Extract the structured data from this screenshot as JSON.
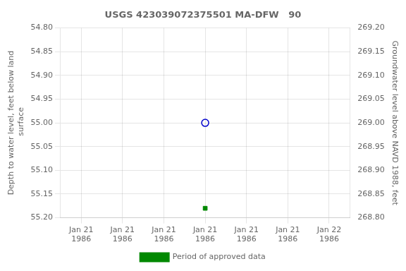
{
  "chart_data": {
    "type": "scatter",
    "title": "USGS 423039072375501 MA-DFW   90",
    "categories": [
      "Jan 21\n1986",
      "Jan 21\n1986",
      "Jan 21\n1986",
      "Jan 21\n1986",
      "Jan 21\n1986",
      "Jan 21\n1986",
      "Jan 22\n1986"
    ],
    "series": [
      {
        "color": "#0000cc",
        "marker": "circle_open",
        "values": [
          null,
          null,
          null,
          55.0,
          null,
          null,
          null
        ]
      },
      {
        "name": "Period of approved data",
        "color": "#008800",
        "marker": "square",
        "values": [
          null,
          null,
          null,
          55.18,
          null,
          null,
          null
        ]
      }
    ],
    "y_label": "Depth to water level, feet below land\n surface",
    "y2_label": "Groundwater level above NAVD 1988, feet",
    "ylim": [
      55.2,
      54.8
    ],
    "yticks": [
      {
        "value": 54.8,
        "label": "54.80"
      },
      54.85,
      {
        "value": 54.9,
        "label": "54.90"
      },
      54.95,
      {
        "value": 55.0,
        "label": "55.00"
      },
      55.05,
      {
        "value": 55.1,
        "label": "55.10"
      },
      55.15,
      {
        "value": 55.2,
        "label": "55.20"
      }
    ],
    "y2lim": [
      268.8,
      269.2
    ],
    "y2ticks": [
      {
        "value": 268.8,
        "label": "268.80"
      },
      268.85,
      {
        "value": 268.9,
        "label": "268.90"
      },
      268.95,
      {
        "value": 269.0,
        "label": "269.00"
      },
      269.05,
      {
        "value": 269.1,
        "label": "269.10"
      },
      269.15,
      {
        "value": 269.2,
        "label": "269.20"
      }
    ],
    "grid": true,
    "legend": "bottom"
  }
}
